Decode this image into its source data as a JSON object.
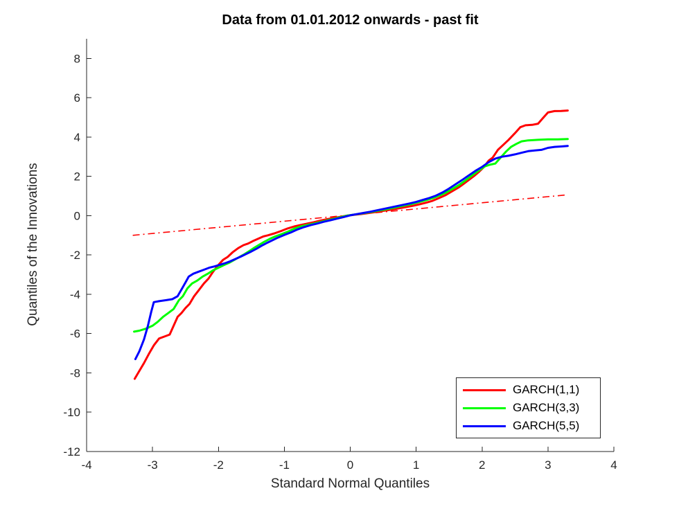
{
  "chart_data": {
    "type": "line",
    "title": "Data from 01.01.2012 onwards - past fit",
    "xlabel": "Standard Normal Quantiles",
    "ylabel": "Quantiles of the Innovations",
    "xlim": [
      -4,
      4
    ],
    "ylim": [
      -12,
      9
    ],
    "x_ticks": [
      -4,
      -3,
      -2,
      -1,
      0,
      1,
      2,
      3,
      4
    ],
    "y_ticks": [
      -12,
      -10,
      -8,
      -6,
      -4,
      -2,
      0,
      2,
      4,
      6,
      8
    ],
    "grid": false,
    "legend_position": "bottom-right",
    "axis_color": "#262626",
    "background_color": "#ffffff",
    "series": [
      {
        "name": "GARCH(1,1)",
        "color": "#ff0000",
        "style": "solid",
        "points": [
          [
            -3.27,
            -8.3
          ],
          [
            -3.2,
            -7.9
          ],
          [
            -3.13,
            -7.5
          ],
          [
            -3.05,
            -7.0
          ],
          [
            -2.98,
            -6.6
          ],
          [
            -2.9,
            -6.25
          ],
          [
            -2.82,
            -6.15
          ],
          [
            -2.74,
            -6.05
          ],
          [
            -2.68,
            -5.6
          ],
          [
            -2.62,
            -5.15
          ],
          [
            -2.56,
            -4.95
          ],
          [
            -2.5,
            -4.7
          ],
          [
            -2.44,
            -4.5
          ],
          [
            -2.37,
            -4.1
          ],
          [
            -2.3,
            -3.8
          ],
          [
            -2.22,
            -3.45
          ],
          [
            -2.15,
            -3.2
          ],
          [
            -2.08,
            -2.85
          ],
          [
            -2.0,
            -2.5
          ],
          [
            -1.93,
            -2.25
          ],
          [
            -1.86,
            -2.1
          ],
          [
            -1.78,
            -1.85
          ],
          [
            -1.7,
            -1.65
          ],
          [
            -1.62,
            -1.5
          ],
          [
            -1.55,
            -1.42
          ],
          [
            -1.48,
            -1.3
          ],
          [
            -1.4,
            -1.18
          ],
          [
            -1.32,
            -1.06
          ],
          [
            -1.25,
            -1.0
          ],
          [
            -1.15,
            -0.9
          ],
          [
            -1.05,
            -0.78
          ],
          [
            -0.95,
            -0.65
          ],
          [
            -0.85,
            -0.55
          ],
          [
            -0.75,
            -0.47
          ],
          [
            -0.65,
            -0.4
          ],
          [
            -0.55,
            -0.33
          ],
          [
            -0.45,
            -0.25
          ],
          [
            -0.35,
            -0.18
          ],
          [
            -0.25,
            -0.12
          ],
          [
            -0.15,
            -0.06
          ],
          [
            -0.05,
            0.0
          ],
          [
            0.05,
            0.04
          ],
          [
            0.15,
            0.08
          ],
          [
            0.25,
            0.12
          ],
          [
            0.35,
            0.17
          ],
          [
            0.45,
            0.22
          ],
          [
            0.55,
            0.27
          ],
          [
            0.65,
            0.32
          ],
          [
            0.75,
            0.38
          ],
          [
            0.85,
            0.44
          ],
          [
            0.95,
            0.5
          ],
          [
            1.05,
            0.58
          ],
          [
            1.15,
            0.66
          ],
          [
            1.25,
            0.76
          ],
          [
            1.35,
            0.9
          ],
          [
            1.45,
            1.05
          ],
          [
            1.55,
            1.25
          ],
          [
            1.65,
            1.45
          ],
          [
            1.72,
            1.62
          ],
          [
            1.8,
            1.82
          ],
          [
            1.88,
            2.02
          ],
          [
            1.95,
            2.22
          ],
          [
            2.02,
            2.45
          ],
          [
            2.1,
            2.8
          ],
          [
            2.16,
            2.95
          ],
          [
            2.24,
            3.35
          ],
          [
            2.32,
            3.6
          ],
          [
            2.4,
            3.85
          ],
          [
            2.5,
            4.2
          ],
          [
            2.58,
            4.5
          ],
          [
            2.66,
            4.6
          ],
          [
            2.76,
            4.62
          ],
          [
            2.85,
            4.68
          ],
          [
            2.92,
            4.95
          ],
          [
            3.0,
            5.25
          ],
          [
            3.1,
            5.32
          ],
          [
            3.2,
            5.33
          ],
          [
            3.3,
            5.35
          ]
        ]
      },
      {
        "name": "GARCH(3,3)",
        "color": "#00ff00",
        "style": "solid",
        "points": [
          [
            -3.28,
            -5.9
          ],
          [
            -3.2,
            -5.85
          ],
          [
            -3.1,
            -5.75
          ],
          [
            -3.0,
            -5.6
          ],
          [
            -2.92,
            -5.4
          ],
          [
            -2.84,
            -5.15
          ],
          [
            -2.76,
            -4.95
          ],
          [
            -2.68,
            -4.75
          ],
          [
            -2.6,
            -4.3
          ],
          [
            -2.54,
            -4.1
          ],
          [
            -2.47,
            -3.7
          ],
          [
            -2.4,
            -3.45
          ],
          [
            -2.32,
            -3.3
          ],
          [
            -2.24,
            -3.1
          ],
          [
            -2.16,
            -2.95
          ],
          [
            -2.08,
            -2.78
          ],
          [
            -2.0,
            -2.65
          ],
          [
            -1.92,
            -2.52
          ],
          [
            -1.84,
            -2.4
          ],
          [
            -1.76,
            -2.25
          ],
          [
            -1.68,
            -2.1
          ],
          [
            -1.6,
            -1.95
          ],
          [
            -1.52,
            -1.78
          ],
          [
            -1.45,
            -1.62
          ],
          [
            -1.38,
            -1.48
          ],
          [
            -1.3,
            -1.32
          ],
          [
            -1.22,
            -1.18
          ],
          [
            -1.14,
            -1.06
          ],
          [
            -1.05,
            -0.95
          ],
          [
            -0.95,
            -0.82
          ],
          [
            -0.85,
            -0.66
          ],
          [
            -0.75,
            -0.55
          ],
          [
            -0.65,
            -0.47
          ],
          [
            -0.55,
            -0.4
          ],
          [
            -0.45,
            -0.32
          ],
          [
            -0.35,
            -0.24
          ],
          [
            -0.25,
            -0.16
          ],
          [
            -0.15,
            -0.08
          ],
          [
            -0.05,
            0.0
          ],
          [
            0.05,
            0.05
          ],
          [
            0.15,
            0.1
          ],
          [
            0.25,
            0.15
          ],
          [
            0.35,
            0.21
          ],
          [
            0.45,
            0.27
          ],
          [
            0.55,
            0.33
          ],
          [
            0.65,
            0.4
          ],
          [
            0.75,
            0.47
          ],
          [
            0.85,
            0.54
          ],
          [
            0.95,
            0.61
          ],
          [
            1.05,
            0.7
          ],
          [
            1.15,
            0.79
          ],
          [
            1.25,
            0.89
          ],
          [
            1.35,
            1.02
          ],
          [
            1.45,
            1.17
          ],
          [
            1.55,
            1.36
          ],
          [
            1.65,
            1.56
          ],
          [
            1.75,
            1.8
          ],
          [
            1.85,
            2.05
          ],
          [
            1.95,
            2.3
          ],
          [
            2.05,
            2.52
          ],
          [
            2.13,
            2.6
          ],
          [
            2.2,
            2.65
          ],
          [
            2.28,
            2.95
          ],
          [
            2.36,
            3.25
          ],
          [
            2.44,
            3.5
          ],
          [
            2.52,
            3.65
          ],
          [
            2.6,
            3.78
          ],
          [
            2.7,
            3.83
          ],
          [
            2.85,
            3.86
          ],
          [
            3.0,
            3.88
          ],
          [
            3.15,
            3.88
          ],
          [
            3.3,
            3.9
          ]
        ]
      },
      {
        "name": "GARCH(5,5)",
        "color": "#0000ff",
        "style": "solid",
        "points": [
          [
            -3.26,
            -7.3
          ],
          [
            -3.2,
            -6.9
          ],
          [
            -3.13,
            -6.3
          ],
          [
            -3.07,
            -5.6
          ],
          [
            -3.02,
            -4.9
          ],
          [
            -2.98,
            -4.4
          ],
          [
            -2.9,
            -4.35
          ],
          [
            -2.8,
            -4.3
          ],
          [
            -2.7,
            -4.25
          ],
          [
            -2.62,
            -4.1
          ],
          [
            -2.55,
            -3.7
          ],
          [
            -2.5,
            -3.4
          ],
          [
            -2.45,
            -3.1
          ],
          [
            -2.38,
            -2.95
          ],
          [
            -2.3,
            -2.85
          ],
          [
            -2.22,
            -2.75
          ],
          [
            -2.14,
            -2.65
          ],
          [
            -2.06,
            -2.58
          ],
          [
            -1.98,
            -2.5
          ],
          [
            -1.9,
            -2.42
          ],
          [
            -1.82,
            -2.32
          ],
          [
            -1.74,
            -2.2
          ],
          [
            -1.66,
            -2.08
          ],
          [
            -1.58,
            -1.95
          ],
          [
            -1.5,
            -1.82
          ],
          [
            -1.42,
            -1.68
          ],
          [
            -1.34,
            -1.52
          ],
          [
            -1.26,
            -1.38
          ],
          [
            -1.18,
            -1.25
          ],
          [
            -1.1,
            -1.12
          ],
          [
            -1.0,
            -0.98
          ],
          [
            -0.9,
            -0.85
          ],
          [
            -0.8,
            -0.7
          ],
          [
            -0.7,
            -0.58
          ],
          [
            -0.6,
            -0.48
          ],
          [
            -0.5,
            -0.4
          ],
          [
            -0.4,
            -0.31
          ],
          [
            -0.3,
            -0.23
          ],
          [
            -0.2,
            -0.15
          ],
          [
            -0.1,
            -0.07
          ],
          [
            0.0,
            0.02
          ],
          [
            0.1,
            0.08
          ],
          [
            0.2,
            0.14
          ],
          [
            0.3,
            0.2
          ],
          [
            0.4,
            0.27
          ],
          [
            0.5,
            0.34
          ],
          [
            0.6,
            0.41
          ],
          [
            0.7,
            0.48
          ],
          [
            0.8,
            0.55
          ],
          [
            0.9,
            0.62
          ],
          [
            1.0,
            0.7
          ],
          [
            1.1,
            0.8
          ],
          [
            1.2,
            0.9
          ],
          [
            1.3,
            1.02
          ],
          [
            1.4,
            1.18
          ],
          [
            1.5,
            1.38
          ],
          [
            1.6,
            1.6
          ],
          [
            1.7,
            1.82
          ],
          [
            1.8,
            2.05
          ],
          [
            1.9,
            2.28
          ],
          [
            2.0,
            2.48
          ],
          [
            2.1,
            2.72
          ],
          [
            2.2,
            2.9
          ],
          [
            2.3,
            3.0
          ],
          [
            2.4,
            3.05
          ],
          [
            2.5,
            3.12
          ],
          [
            2.6,
            3.2
          ],
          [
            2.7,
            3.28
          ],
          [
            2.8,
            3.32
          ],
          [
            2.9,
            3.35
          ],
          [
            3.0,
            3.45
          ],
          [
            3.1,
            3.5
          ],
          [
            3.2,
            3.52
          ],
          [
            3.3,
            3.55
          ]
        ]
      }
    ],
    "reference_line": {
      "name": "qq-reference-line",
      "color": "#ff0000",
      "style": "dash-dot",
      "points": [
        [
          -3.3,
          -1.0
        ],
        [
          3.3,
          1.06
        ]
      ]
    }
  }
}
